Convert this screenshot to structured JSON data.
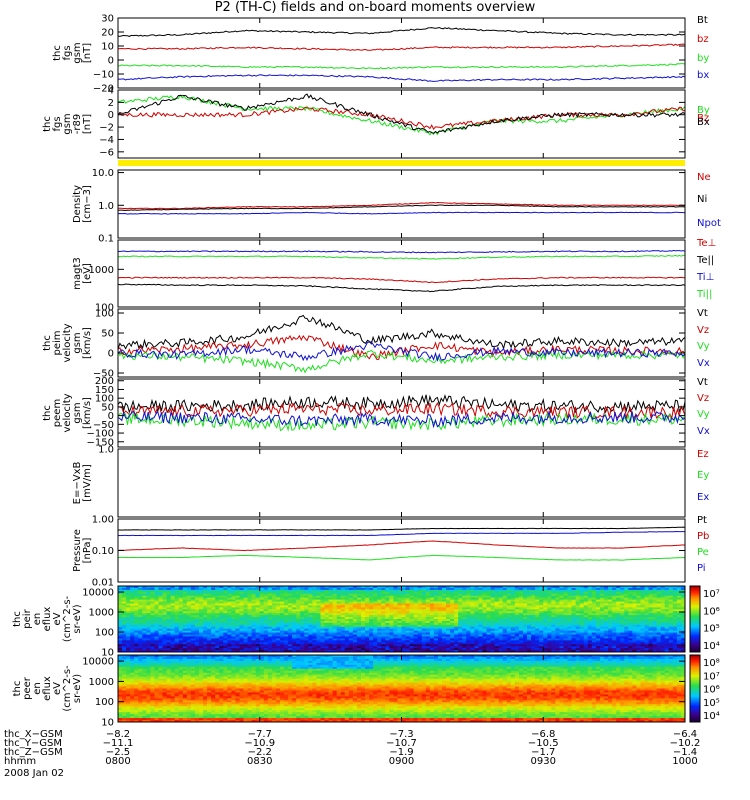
{
  "title": "P2 (TH-C) fields and on-board moments overview",
  "colors": {
    "black": "#000000",
    "red": "#d00000",
    "green": "#1ee01e",
    "blue": "#1010d0",
    "yellow": "#ffee00"
  },
  "chart_data": [
    {
      "id": "fgs",
      "type": "line",
      "ylabel": [
        "thc",
        "fgs",
        "gsm",
        "[nT]"
      ],
      "ylim": [
        -20,
        30
      ],
      "yticks": [
        "30",
        "20",
        "10",
        "0",
        "−10",
        "−20"
      ],
      "ytick_values": [
        30,
        20,
        10,
        0,
        -10,
        -20
      ],
      "series": [
        {
          "name": "Bt",
          "color": "black",
          "values": [
            17,
            18,
            21,
            20,
            19,
            23,
            21,
            19,
            18,
            18
          ]
        },
        {
          "name": "bz",
          "color": "red",
          "values": [
            8,
            8,
            9,
            8,
            7,
            9,
            9,
            9,
            10,
            11
          ]
        },
        {
          "name": "by",
          "color": "green",
          "values": [
            -4,
            -4,
            -5,
            -5,
            -6,
            -5,
            -5,
            -5,
            -4,
            -3
          ]
        },
        {
          "name": "bx",
          "color": "blue",
          "values": [
            -14,
            -12,
            -11,
            -11,
            -12,
            -15,
            -14,
            -14,
            -13,
            -12
          ]
        }
      ]
    },
    {
      "id": "fgs_dtr",
      "type": "line",
      "ylabel": [
        "thc",
        "fgs",
        "gsm",
        "-r89",
        "[nT]"
      ],
      "ylim": [
        -7,
        4
      ],
      "yticks": [
        "4",
        "2",
        "0",
        "−2",
        "−4",
        "−6"
      ],
      "ytick_values": [
        4,
        2,
        0,
        -2,
        -4,
        -6
      ],
      "series": [
        {
          "name": "By",
          "color": "green",
          "values": [
            2,
            3,
            1,
            1,
            -1,
            -3,
            -1,
            -1,
            0,
            1
          ]
        },
        {
          "name": "Bz",
          "color": "red",
          "values": [
            0,
            0,
            0,
            1,
            0,
            -2,
            -1,
            0,
            0,
            1
          ]
        },
        {
          "name": "Bx",
          "color": "black",
          "values": [
            0,
            3,
            1,
            3,
            0,
            -3,
            -1,
            0,
            0,
            0
          ]
        }
      ]
    },
    {
      "id": "density",
      "type": "line",
      "log": true,
      "ylabel": [
        "Density",
        "[cm−3]"
      ],
      "ylim": [
        0.1,
        12
      ],
      "yticks": [
        "10.0",
        "1.0",
        "0.1"
      ],
      "ytick_values": [
        10,
        1,
        0.1
      ],
      "series": [
        {
          "name": "Ne",
          "color": "red",
          "values": [
            0.8,
            0.8,
            0.9,
            0.9,
            1.0,
            1.2,
            1.1,
            1.0,
            1.0,
            1.0
          ]
        },
        {
          "name": "Ni",
          "color": "black",
          "values": [
            0.7,
            0.75,
            0.8,
            0.8,
            0.9,
            1.0,
            1.0,
            0.9,
            0.9,
            0.9
          ]
        },
        {
          "name": "Npot",
          "color": "blue",
          "values": [
            0.55,
            0.55,
            0.55,
            0.6,
            0.55,
            0.6,
            0.6,
            0.6,
            0.6,
            0.6
          ]
        }
      ]
    },
    {
      "id": "temp",
      "type": "line",
      "log": true,
      "ylabel": [
        "magt3",
        "[eV]"
      ],
      "ylim": [
        100,
        6000
      ],
      "yticks": [
        "1000",
        "100"
      ],
      "ytick_values": [
        1000,
        100
      ],
      "series": [
        {
          "name": "Te⊥",
          "color": "red",
          "values": [
            600,
            600,
            600,
            600,
            550,
            450,
            550,
            600,
            600,
            600
          ]
        },
        {
          "name": "Te||",
          "color": "black",
          "values": [
            400,
            380,
            380,
            360,
            300,
            260,
            350,
            380,
            380,
            380
          ]
        },
        {
          "name": "Ti⊥",
          "color": "blue",
          "values": [
            3000,
            3000,
            3000,
            3000,
            2900,
            2800,
            2900,
            3000,
            3000,
            3100
          ]
        },
        {
          "name": "Ti||",
          "color": "green",
          "values": [
            2200,
            2200,
            2200,
            2200,
            2000,
            1900,
            2100,
            2200,
            2200,
            2300
          ]
        }
      ]
    },
    {
      "id": "peim",
      "type": "line",
      "ylabel": [
        "thc",
        "peim",
        "velocity",
        "gsm",
        "[km/s]"
      ],
      "ylim": [
        -60,
        110
      ],
      "yticks": [
        "100",
        "50",
        "0",
        "−50"
      ],
      "ytick_values": [
        100,
        50,
        0,
        -50
      ],
      "series": [
        {
          "name": "Vt",
          "color": "black",
          "values": [
            20,
            25,
            40,
            90,
            30,
            50,
            20,
            30,
            25,
            30
          ]
        },
        {
          "name": "Vz",
          "color": "red",
          "values": [
            5,
            10,
            20,
            40,
            -10,
            20,
            0,
            10,
            5,
            5
          ]
        },
        {
          "name": "Vy",
          "color": "green",
          "values": [
            -5,
            -10,
            -20,
            -40,
            0,
            -20,
            -10,
            -5,
            -5,
            -5
          ]
        },
        {
          "name": "Vx",
          "color": "blue",
          "values": [
            0,
            -5,
            10,
            -10,
            20,
            -10,
            5,
            0,
            0,
            0
          ]
        }
      ]
    },
    {
      "id": "peem",
      "type": "line",
      "ylabel": [
        "thc",
        "peem",
        "velocity",
        "gsm",
        "[km/s]"
      ],
      "ylim": [
        -180,
        210
      ],
      "yticks": [
        "200",
        "150",
        "100",
        "50",
        "0",
        "−50",
        "−100",
        "−150"
      ],
      "ytick_values": [
        200,
        150,
        100,
        50,
        0,
        -50,
        -100,
        -150
      ],
      "series": [
        {
          "name": "Vt",
          "color": "black",
          "values": [
            50,
            55,
            60,
            80,
            70,
            90,
            60,
            55,
            55,
            55
          ]
        },
        {
          "name": "Vz",
          "color": "red",
          "values": [
            20,
            25,
            30,
            40,
            30,
            40,
            25,
            20,
            20,
            20
          ]
        },
        {
          "name": "Vy",
          "color": "green",
          "values": [
            -20,
            -25,
            -40,
            -60,
            -40,
            -50,
            -30,
            -20,
            -20,
            -20
          ]
        },
        {
          "name": "Vx",
          "color": "blue",
          "values": [
            -10,
            -10,
            -20,
            -30,
            -20,
            -30,
            -15,
            -10,
            -10,
            -10
          ]
        }
      ]
    },
    {
      "id": "efield",
      "type": "line",
      "ylabel": [
        "E=−VxB",
        "[mV/m]"
      ],
      "ylim": [
        -1,
        1
      ],
      "yticks": [
        "1.0"
      ],
      "ytick_values": [
        1.0
      ],
      "series": [
        {
          "name": "Ez",
          "color": "red",
          "values": []
        },
        {
          "name": "Ey",
          "color": "green",
          "values": []
        },
        {
          "name": "Ex",
          "color": "blue",
          "values": []
        }
      ]
    },
    {
      "id": "pressure",
      "type": "line",
      "log": true,
      "ylabel": [
        "Pressure",
        "[nPa]"
      ],
      "ylim": [
        0.01,
        1.0
      ],
      "yticks": [
        "1.00",
        "0.10",
        "0.01"
      ],
      "ytick_values": [
        1.0,
        0.1,
        0.01
      ],
      "series": [
        {
          "name": "Pt",
          "color": "black",
          "values": [
            0.45,
            0.45,
            0.45,
            0.45,
            0.45,
            0.5,
            0.5,
            0.5,
            0.5,
            0.55
          ]
        },
        {
          "name": "Pb",
          "color": "red",
          "values": [
            0.1,
            0.12,
            0.1,
            0.12,
            0.15,
            0.2,
            0.15,
            0.12,
            0.12,
            0.15
          ]
        },
        {
          "name": "Pe",
          "color": "green",
          "values": [
            0.06,
            0.06,
            0.07,
            0.06,
            0.05,
            0.07,
            0.06,
            0.05,
            0.05,
            0.06
          ]
        },
        {
          "name": "Pi",
          "color": "blue",
          "values": [
            0.3,
            0.3,
            0.3,
            0.3,
            0.3,
            0.35,
            0.35,
            0.35,
            0.38,
            0.4
          ]
        }
      ]
    },
    {
      "id": "peir",
      "type": "heatmap",
      "ylabel": [
        "thc",
        "peir",
        "en",
        "eflux",
        "eV",
        "(cm^2-s-",
        "sr-eV)"
      ],
      "ylim": [
        10,
        20000
      ],
      "yticks": [
        "10000",
        "1000",
        "100",
        "10"
      ],
      "ytick_values": [
        10000,
        1000,
        100,
        10
      ],
      "colorbar_ticks": [
        "10⁷",
        "10⁶",
        "10⁵",
        "10⁴"
      ]
    },
    {
      "id": "peer",
      "type": "heatmap",
      "ylabel": [
        "thc",
        "peer",
        "en",
        "eflux",
        "eV",
        "(cm^2-s-",
        "sr-eV)"
      ],
      "ylim": [
        10,
        20000
      ],
      "yticks": [
        "10000",
        "1000",
        "100",
        "10"
      ],
      "ytick_values": [
        10000,
        1000,
        100,
        10
      ],
      "colorbar_ticks": [
        "10⁸",
        "10⁷",
        "10⁶",
        "10⁵",
        "10⁴"
      ]
    }
  ],
  "time_axis": {
    "rows": [
      {
        "label": "thc_X−GSM",
        "values": [
          "−8.2",
          "−7.7",
          "−7.3",
          "−6.8",
          "−6.4"
        ]
      },
      {
        "label": "thc_Y−GSM",
        "values": [
          "−11.1",
          "−10.9",
          "−10.7",
          "−10.5",
          "−10.2"
        ]
      },
      {
        "label": "thc_Z−GSM",
        "values": [
          "−2.5",
          "−2.2",
          "−1.9",
          "−1.7",
          "−1.4"
        ]
      },
      {
        "label": "hhmm",
        "values": [
          "0800",
          "0830",
          "0900",
          "0930",
          "1000"
        ]
      }
    ],
    "date": "2008 Jan 02"
  }
}
